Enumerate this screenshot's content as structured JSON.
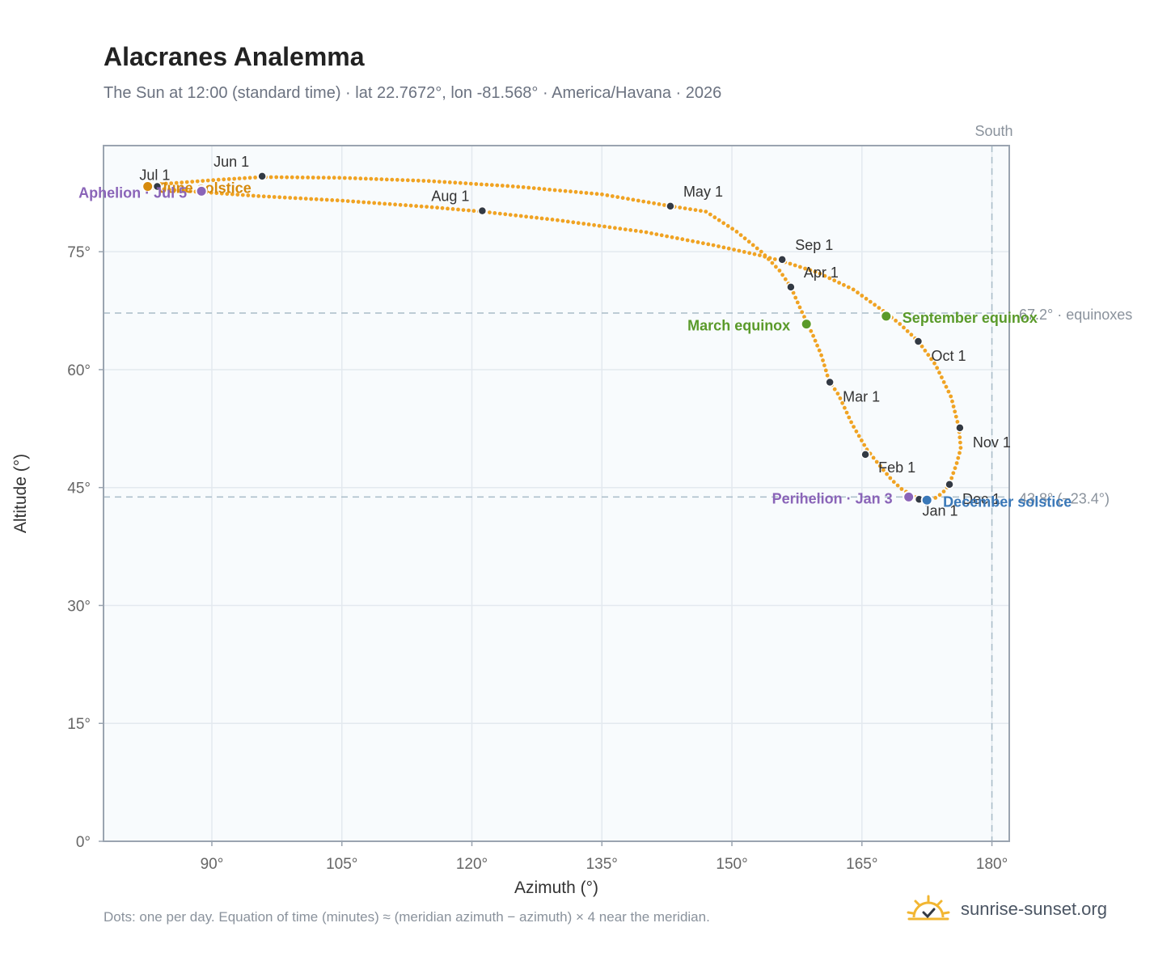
{
  "header": {
    "title": "Alacranes Analemma",
    "subtitle": "The Sun at 12:00 (standard time) · lat 22.7672°, lon -81.568° · America/Havana · 2026"
  },
  "footer": {
    "note": "Dots: one per day. Equation of time (minutes) ≈ (meridian azimuth − azimuth) × 4 near the meridian.",
    "brand": "sunrise-sunset.org",
    "brand_icon": "sun-logo-icon"
  },
  "chart_data": {
    "type": "scatter",
    "xlabel": "Azimuth (°)",
    "ylabel": "Altitude (°)",
    "xlim": [
      77.5,
      182
    ],
    "ylim": [
      0,
      88.5
    ],
    "xticks": [
      90,
      105,
      120,
      135,
      150,
      165,
      180
    ],
    "yticks": [
      0,
      15,
      30,
      45,
      60,
      75
    ],
    "xtick_suffix": "°",
    "ytick_suffix": "°",
    "grid": true,
    "south_label": "South",
    "south_azimuth": 180,
    "colors": {
      "path": "#f0a323",
      "month_marker": "#333a44",
      "solstice_june": "#d68a0c",
      "solstice_december": "#3a78b8",
      "equinox": "#5a9a2a",
      "apsis": "#8a64b8",
      "reference_line": "#a9bcc8",
      "plot_bg": "#f8fbfd",
      "grid": "#e3e9ef",
      "axis": "#9aa4b0"
    },
    "path_points": [
      [
        172.3,
        43.4
      ],
      [
        172.0,
        43.5
      ],
      [
        171.5,
        43.6
      ],
      [
        171.1,
        43.8
      ],
      [
        170.5,
        44.2
      ],
      [
        169.6,
        44.8
      ],
      [
        168.5,
        45.9
      ],
      [
        167.2,
        47.6
      ],
      [
        165.6,
        49.8
      ],
      [
        163.9,
        53.0
      ],
      [
        162.3,
        56.8
      ],
      [
        161.2,
        58.6
      ],
      [
        160.3,
        61.9
      ],
      [
        159.3,
        64.5
      ],
      [
        158.6,
        66.1
      ],
      [
        157.6,
        68.5
      ],
      [
        156.8,
        70.5
      ],
      [
        155.5,
        72.6
      ],
      [
        153.5,
        74.9
      ],
      [
        150.5,
        77.6
      ],
      [
        147.0,
        80.1
      ],
      [
        142.9,
        80.8
      ],
      [
        135.0,
        82.3
      ],
      [
        125.0,
        83.3
      ],
      [
        115.0,
        84.0
      ],
      [
        105.0,
        84.4
      ],
      [
        95.8,
        84.5
      ],
      [
        90.0,
        84.1
      ],
      [
        84.0,
        83.6
      ],
      [
        83.0,
        83.4
      ],
      [
        82.5,
        83.3
      ],
      [
        84.0,
        83.0
      ],
      [
        86.0,
        82.8
      ],
      [
        88.8,
        82.6
      ],
      [
        95.0,
        82.1
      ],
      [
        105.0,
        81.5
      ],
      [
        115.0,
        80.7
      ],
      [
        121.2,
        80.1
      ],
      [
        130.0,
        79.0
      ],
      [
        140.0,
        77.5
      ],
      [
        148.0,
        75.8
      ],
      [
        153.0,
        74.6
      ],
      [
        155.8,
        73.8
      ],
      [
        160.0,
        72.3
      ],
      [
        164.0,
        70.2
      ],
      [
        167.8,
        67.2
      ],
      [
        169.5,
        65.7
      ],
      [
        171.5,
        63.6
      ],
      [
        173.5,
        60.6
      ],
      [
        175.3,
        56.5
      ],
      [
        176.2,
        52.6
      ],
      [
        176.4,
        50.0
      ],
      [
        176.0,
        48.3
      ],
      [
        175.1,
        45.4
      ],
      [
        174.3,
        44.3
      ],
      [
        173.5,
        43.7
      ],
      [
        172.3,
        43.4
      ]
    ],
    "reference_lines": [
      {
        "altitude": 67.2,
        "label": "67.2° · equinoxes"
      },
      {
        "altitude": 43.8,
        "label": "43.8° (−23.4°)"
      }
    ],
    "month_markers": [
      {
        "label": "Jan 1",
        "x": 171.6,
        "y": 43.5,
        "anchor": "start",
        "dx": 4,
        "dy": 20
      },
      {
        "label": "Feb 1",
        "x": 165.4,
        "y": 49.2,
        "anchor": "start",
        "dx": 16,
        "dy": 22
      },
      {
        "label": "Mar 1",
        "x": 161.3,
        "y": 58.4,
        "anchor": "start",
        "dx": 16,
        "dy": 24
      },
      {
        "label": "Apr 1",
        "x": 156.8,
        "y": 70.5,
        "anchor": "start",
        "dx": 16,
        "dy": -12
      },
      {
        "label": "May 1",
        "x": 142.9,
        "y": 80.8,
        "anchor": "start",
        "dx": 16,
        "dy": -12
      },
      {
        "label": "Jun 1",
        "x": 95.8,
        "y": 84.6,
        "anchor": "end",
        "dx": -16,
        "dy": -12
      },
      {
        "label": "Jul 1",
        "x": 83.7,
        "y": 83.3,
        "anchor": "end",
        "dx": 16,
        "dy": -8
      },
      {
        "label": "Aug 1",
        "x": 121.2,
        "y": 80.2,
        "anchor": "end",
        "dx": -16,
        "dy": -12
      },
      {
        "label": "Sep 1",
        "x": 155.8,
        "y": 74.0,
        "anchor": "start",
        "dx": 16,
        "dy": -12
      },
      {
        "label": "Oct 1",
        "x": 171.5,
        "y": 63.6,
        "anchor": "start",
        "dx": 16,
        "dy": 24
      },
      {
        "label": "Nov 1",
        "x": 176.3,
        "y": 52.6,
        "anchor": "start",
        "dx": 16,
        "dy": 24
      },
      {
        "label": "Dec 1",
        "x": 175.1,
        "y": 45.4,
        "anchor": "start",
        "dx": 16,
        "dy": 24
      }
    ],
    "events": [
      {
        "label": "June solstice",
        "x": 82.6,
        "y": 83.3,
        "colorKey": "solstice_june",
        "anchor": "start",
        "dx": 14,
        "dy": 8
      },
      {
        "label": "Aphelion · Jul 5",
        "x": 88.8,
        "y": 82.7,
        "colorKey": "apsis",
        "anchor": "end",
        "dx": -18,
        "dy": 8
      },
      {
        "label": "September equinox",
        "x": 167.8,
        "y": 66.8,
        "colorKey": "equinox",
        "anchor": "start",
        "dx": 20,
        "dy": 8
      },
      {
        "label": "March equinox",
        "x": 158.6,
        "y": 65.8,
        "colorKey": "equinox",
        "anchor": "end",
        "dx": -20,
        "dy": 8
      },
      {
        "label": "Perihelion · Jan 3",
        "x": 170.4,
        "y": 43.8,
        "colorKey": "apsis",
        "anchor": "end",
        "dx": -20,
        "dy": 8
      },
      {
        "label": "December solstice",
        "x": 172.5,
        "y": 43.4,
        "colorKey": "solstice_december",
        "anchor": "start",
        "dx": 20,
        "dy": 8
      }
    ]
  }
}
